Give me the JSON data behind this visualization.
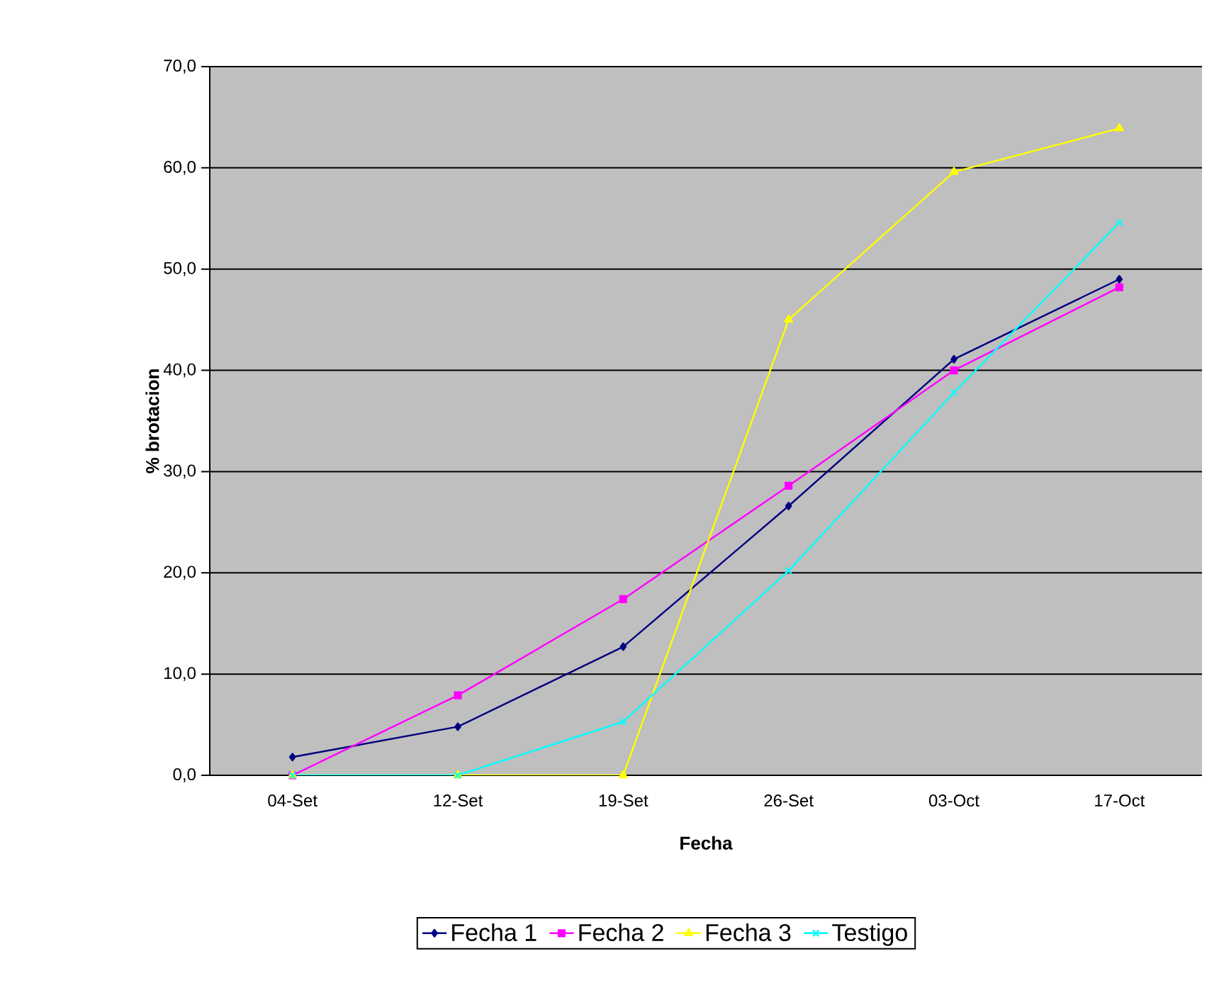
{
  "chart_data": {
    "type": "line",
    "xlabel": "Fecha",
    "ylabel": "% brotacion",
    "categories": [
      "04-Set",
      "12-Set",
      "19-Set",
      "26-Set",
      "03-Oct",
      "17-Oct"
    ],
    "series": [
      {
        "name": "Fecha 1",
        "color": "#000080",
        "marker": "diamond",
        "values": [
          1.8,
          4.8,
          12.7,
          26.6,
          41.1,
          49.0
        ]
      },
      {
        "name": "Fecha 2",
        "color": "#ff00ff",
        "marker": "square",
        "values": [
          0.0,
          7.9,
          17.4,
          28.6,
          40.0,
          48.2
        ]
      },
      {
        "name": "Fecha 3",
        "color": "#ffff00",
        "marker": "triangle",
        "values": [
          0.0,
          0.0,
          0.0,
          45.0,
          59.6,
          63.9
        ]
      },
      {
        "name": "Testigo",
        "color": "#00ffff",
        "marker": "cross",
        "values": [
          0.0,
          0.0,
          5.3,
          20.2,
          37.8,
          54.6
        ]
      }
    ],
    "ylim": [
      0,
      70
    ],
    "yticks": [
      {
        "value": 0,
        "label": "0,0"
      },
      {
        "value": 10,
        "label": "10,0"
      },
      {
        "value": 20,
        "label": "20,0"
      },
      {
        "value": 30,
        "label": "30,0"
      },
      {
        "value": 40,
        "label": "40,0"
      },
      {
        "value": 50,
        "label": "50,0"
      },
      {
        "value": 60,
        "label": "60,0"
      },
      {
        "value": 70,
        "label": "70,0"
      }
    ],
    "grid": "y",
    "legend": "bottom",
    "line_style": "solid"
  }
}
